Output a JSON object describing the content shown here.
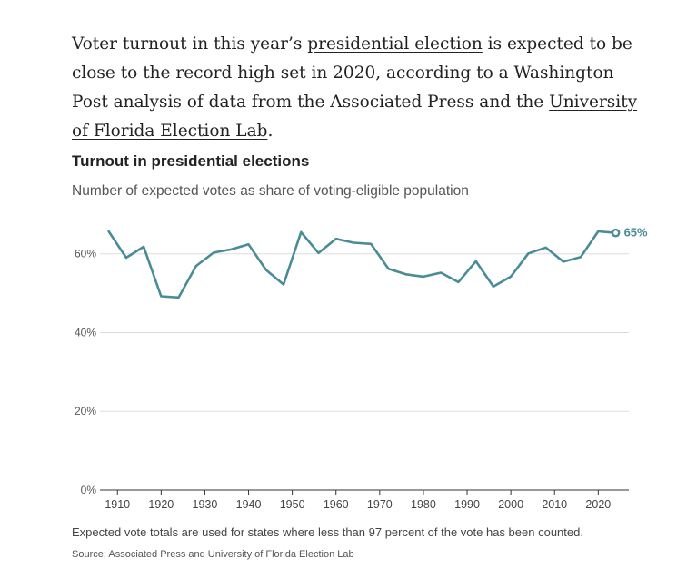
{
  "article": {
    "p1": "Voter turnout in this year’s ",
    "link1": "presidential election",
    "p2": " is expected to be close to the record high set in 2020, according to a Washington Post analysis of data from the Associated Press and the ",
    "link2": "University of Florida Election Lab",
    "p3": "."
  },
  "footer": {
    "note": "Expected vote totals are used for states where less than 97 percent of the vote has been counted.",
    "source": "Source: Associated Press and University of Florida Election Lab"
  },
  "colors": {
    "line": "#4a8c96",
    "grid": "#dddddd",
    "axis": "#333333"
  },
  "chart_data": {
    "type": "line",
    "title": "Turnout in presidential elections",
    "subtitle": "Number of expected votes as share of voting-eligible population",
    "xlabel": "",
    "ylabel": "",
    "ylim": [
      0,
      65
    ],
    "xlim": [
      1906,
      2027
    ],
    "y_ticks": [
      0,
      20,
      40,
      60
    ],
    "y_tick_labels": [
      "0%",
      "20%",
      "40%",
      "60%"
    ],
    "x_ticks": [
      1910,
      1920,
      1930,
      1940,
      1950,
      1960,
      1970,
      1980,
      1990,
      2000,
      2010,
      2020
    ],
    "x_tick_labels": [
      "1910",
      "1920",
      "1930",
      "1940",
      "1950",
      "1960",
      "1970",
      "1980",
      "1990",
      "2000",
      "2010",
      "2020"
    ],
    "grid": true,
    "end_label": "65%",
    "series": [
      {
        "x": [
          1908,
          1912,
          1916,
          1920,
          1924,
          1928,
          1932,
          1936,
          1940,
          1944,
          1948,
          1952,
          1956,
          1960,
          1964,
          1968,
          1972,
          1976,
          1980,
          1984,
          1988,
          1992,
          1996,
          2000,
          2004,
          2008,
          2012,
          2016,
          2020,
          2024
        ],
        "values": [
          65.7,
          59.0,
          61.8,
          49.2,
          48.9,
          56.9,
          60.3,
          61.1,
          62.4,
          55.9,
          52.2,
          65.5,
          60.2,
          63.8,
          62.8,
          62.5,
          56.2,
          54.8,
          54.2,
          55.2,
          52.8,
          58.1,
          51.7,
          54.2,
          60.1,
          61.6,
          58.0,
          59.2,
          65.7,
          65.3
        ]
      }
    ]
  }
}
